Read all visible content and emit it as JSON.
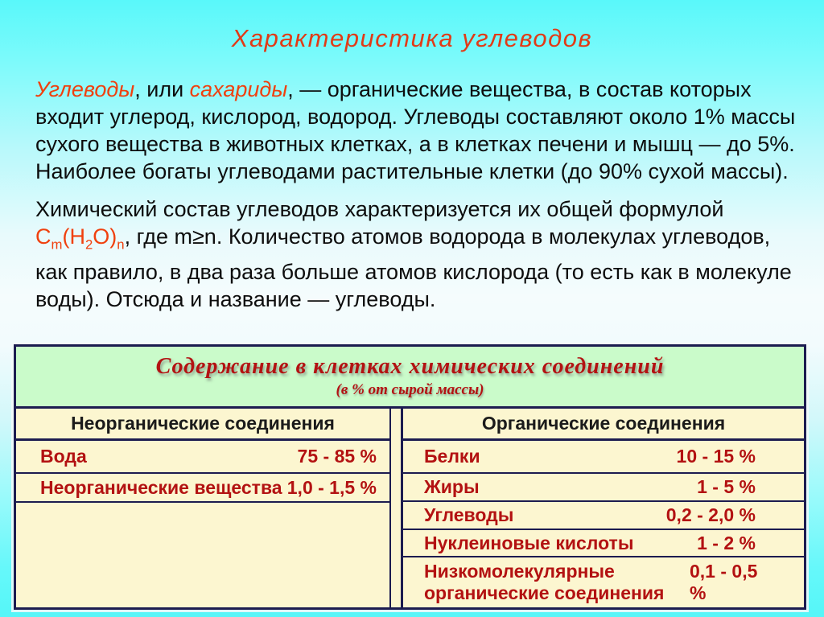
{
  "slide": {
    "title": "Характеристика углеводов",
    "paragraph1": {
      "term1": "Углеводы",
      "mid": ", или ",
      "term2": "сахариды",
      "rest": ", — органические вещества, в состав которых входит углерод, кислород, водород. Углеводы составляют около 1% массы сухого вещества в животных клетках, а в клетках печени и мышц — до 5%. Наиболее богаты углеводами растительные клетки (до 90% сухой массы)."
    },
    "paragraph2": {
      "lead": "Химический состав углеводов характеризуется их общей формулой ",
      "formula": {
        "base1": "C",
        "sub1": "m",
        "base2": "(H",
        "sub2": "2",
        "base3": "O)",
        "sub3": "n"
      },
      "rest": ", где m≥n. Количество атомов водорода в молекулах углеводов, как правило, в два раза больше атомов кислорода (то есть как в молекуле воды). Отсюда и название — углеводы."
    }
  },
  "table": {
    "title": "Содержание в клетках химических соединений",
    "subtitle": "(в % от сырой массы)",
    "left_column": {
      "header": "Неорганические соединения",
      "rows": [
        {
          "label": "Вода",
          "value": "75 - 85 %"
        },
        {
          "label": "Неорганические вещества",
          "value": "1,0 - 1,5 %"
        }
      ]
    },
    "right_column": {
      "header": "Органические соединения",
      "rows": [
        {
          "label": "Белки",
          "value": "10 - 15 %"
        },
        {
          "label": "Жиры",
          "value": "1 - 5 %"
        },
        {
          "label": "Углеводы",
          "value": "0,2 - 2,0 %"
        },
        {
          "label": "Нуклеиновые кислоты",
          "value": "1 - 2 %"
        },
        {
          "label": "Низкомолекулярные органические соединения",
          "value": "0,1 - 0,5 %"
        }
      ]
    }
  },
  "colors": {
    "background_cyan": "#59f8fa",
    "title_red": "#e23a16",
    "highlight_orange": "#f0400e",
    "body_text": "#0d0d0d",
    "table_border_navy": "#1c1c50",
    "table_title_bg_green": "#cafbca",
    "table_cell_bg_cream": "#fcf6d0",
    "table_text_dark_red": "#b31212",
    "table_header_text": "#1b1b1b"
  }
}
